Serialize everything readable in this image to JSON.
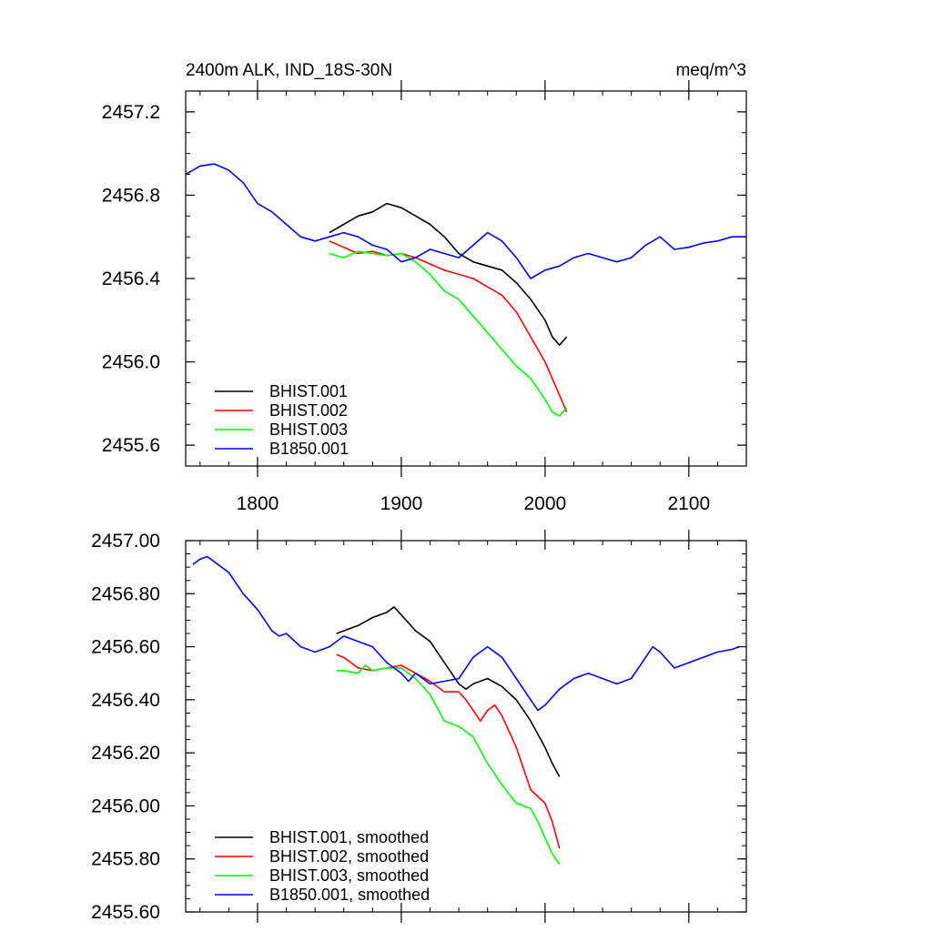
{
  "chart_data": [
    {
      "type": "line",
      "title": "2400m ALK, IND_18S-30N",
      "units": "meq/m^3",
      "xlim": [
        1750,
        2140
      ],
      "ylim": [
        2455.5,
        2457.3
      ],
      "x_ticks": [
        1800,
        1900,
        2000,
        2100
      ],
      "x_tick_labels": [
        "1800",
        "1900",
        "2000",
        "2100"
      ],
      "y_ticks": [
        2455.6,
        2456.0,
        2456.4,
        2456.8,
        2457.2
      ],
      "y_tick_labels": [
        "2455.6",
        "2456.0",
        "2456.4",
        "2456.8",
        "2457.2"
      ],
      "legend_position": "bottom-left",
      "series": [
        {
          "name": "BHIST.001",
          "color": "#000000",
          "x": [
            1850,
            1860,
            1870,
            1880,
            1890,
            1900,
            1910,
            1920,
            1930,
            1940,
            1950,
            1960,
            1970,
            1980,
            1990,
            2000,
            2005,
            2010,
            2015
          ],
          "y": [
            2456.62,
            2456.66,
            2456.7,
            2456.72,
            2456.76,
            2456.74,
            2456.7,
            2456.66,
            2456.6,
            2456.52,
            2456.48,
            2456.46,
            2456.44,
            2456.38,
            2456.3,
            2456.2,
            2456.12,
            2456.08,
            2456.12
          ]
        },
        {
          "name": "BHIST.002",
          "color": "#ff0000",
          "x": [
            1850,
            1860,
            1870,
            1880,
            1890,
            1900,
            1910,
            1920,
            1930,
            1940,
            1950,
            1960,
            1970,
            1980,
            1990,
            2000,
            2005,
            2010,
            2015
          ],
          "y": [
            2456.58,
            2456.55,
            2456.52,
            2456.53,
            2456.51,
            2456.52,
            2456.5,
            2456.47,
            2456.44,
            2456.42,
            2456.4,
            2456.36,
            2456.32,
            2456.24,
            2456.12,
            2456.0,
            2455.92,
            2455.84,
            2455.76
          ]
        },
        {
          "name": "BHIST.003",
          "color": "#00ff00",
          "x": [
            1850,
            1860,
            1870,
            1880,
            1890,
            1900,
            1910,
            1920,
            1930,
            1940,
            1950,
            1960,
            1970,
            1980,
            1990,
            2000,
            2005,
            2010,
            2015
          ],
          "y": [
            2456.52,
            2456.5,
            2456.53,
            2456.52,
            2456.51,
            2456.52,
            2456.48,
            2456.42,
            2456.34,
            2456.3,
            2456.22,
            2456.14,
            2456.06,
            2455.98,
            2455.92,
            2455.82,
            2455.76,
            2455.74,
            2455.78
          ]
        },
        {
          "name": "B1850.001",
          "color": "#0000ff",
          "x": [
            1750,
            1760,
            1770,
            1780,
            1790,
            1800,
            1810,
            1820,
            1830,
            1840,
            1850,
            1860,
            1870,
            1880,
            1890,
            1900,
            1910,
            1920,
            1930,
            1940,
            1950,
            1960,
            1970,
            1980,
            1990,
            2000,
            2010,
            2020,
            2030,
            2040,
            2050,
            2060,
            2070,
            2080,
            2090,
            2100,
            2110,
            2120,
            2130,
            2140
          ],
          "y": [
            2456.9,
            2456.94,
            2456.95,
            2456.92,
            2456.86,
            2456.76,
            2456.72,
            2456.66,
            2456.6,
            2456.58,
            2456.6,
            2456.62,
            2456.6,
            2456.56,
            2456.54,
            2456.48,
            2456.5,
            2456.54,
            2456.52,
            2456.5,
            2456.56,
            2456.62,
            2456.58,
            2456.5,
            2456.4,
            2456.44,
            2456.46,
            2456.5,
            2456.52,
            2456.5,
            2456.48,
            2456.5,
            2456.56,
            2456.6,
            2456.54,
            2456.55,
            2456.57,
            2456.58,
            2456.6,
            2456.6
          ]
        }
      ]
    },
    {
      "type": "line",
      "xlim": [
        1750,
        2140
      ],
      "ylim": [
        2455.6,
        2457.0
      ],
      "x_ticks": [
        1800,
        1900,
        2000,
        2100
      ],
      "y_ticks": [
        2455.6,
        2455.8,
        2456.0,
        2456.2,
        2456.4,
        2456.6,
        2456.8,
        2457.0
      ],
      "y_tick_labels": [
        "2455.60",
        "2455.80",
        "2456.00",
        "2456.20",
        "2456.40",
        "2456.60",
        "2456.80",
        "2457.00"
      ],
      "legend_position": "bottom-left",
      "series": [
        {
          "name": "BHIST.001, smoothed",
          "color": "#000000",
          "x": [
            1855,
            1860,
            1870,
            1880,
            1890,
            1895,
            1900,
            1910,
            1920,
            1930,
            1940,
            1945,
            1950,
            1960,
            1970,
            1980,
            1990,
            2000,
            2005,
            2010
          ],
          "y": [
            2456.65,
            2456.66,
            2456.68,
            2456.71,
            2456.73,
            2456.75,
            2456.72,
            2456.66,
            2456.62,
            2456.54,
            2456.46,
            2456.44,
            2456.46,
            2456.48,
            2456.45,
            2456.4,
            2456.32,
            2456.22,
            2456.16,
            2456.11
          ]
        },
        {
          "name": "BHIST.002, smoothed",
          "color": "#ff0000",
          "x": [
            1855,
            1860,
            1870,
            1880,
            1890,
            1900,
            1910,
            1920,
            1930,
            1940,
            1945,
            1950,
            1955,
            1960,
            1965,
            1970,
            1980,
            1990,
            2000,
            2005,
            2010
          ],
          "y": [
            2456.57,
            2456.56,
            2456.52,
            2456.51,
            2456.52,
            2456.53,
            2456.5,
            2456.47,
            2456.43,
            2456.43,
            2456.4,
            2456.36,
            2456.32,
            2456.36,
            2456.38,
            2456.34,
            2456.22,
            2456.06,
            2456.01,
            2455.94,
            2455.84
          ]
        },
        {
          "name": "BHIST.003, smoothed",
          "color": "#00ff00",
          "x": [
            1855,
            1860,
            1870,
            1875,
            1880,
            1890,
            1900,
            1910,
            1920,
            1930,
            1940,
            1950,
            1960,
            1970,
            1980,
            1990,
            1995,
            2000,
            2005,
            2010
          ],
          "y": [
            2456.51,
            2456.51,
            2456.5,
            2456.53,
            2456.51,
            2456.52,
            2456.52,
            2456.48,
            2456.42,
            2456.32,
            2456.3,
            2456.26,
            2456.16,
            2456.08,
            2456.01,
            2455.99,
            2455.94,
            2455.88,
            2455.82,
            2455.78
          ]
        },
        {
          "name": "B1850.001, smoothed",
          "color": "#0000ff",
          "x": [
            1755,
            1760,
            1765,
            1770,
            1780,
            1790,
            1800,
            1810,
            1815,
            1820,
            1830,
            1840,
            1850,
            1860,
            1870,
            1880,
            1890,
            1900,
            1905,
            1910,
            1920,
            1930,
            1940,
            1950,
            1955,
            1960,
            1970,
            1980,
            1990,
            1995,
            2000,
            2010,
            2020,
            2030,
            2040,
            2050,
            2060,
            2070,
            2075,
            2080,
            2090,
            2100,
            2110,
            2120,
            2130,
            2135
          ],
          "y": [
            2456.91,
            2456.93,
            2456.94,
            2456.92,
            2456.88,
            2456.8,
            2456.74,
            2456.66,
            2456.64,
            2456.65,
            2456.6,
            2456.58,
            2456.6,
            2456.64,
            2456.62,
            2456.6,
            2456.54,
            2456.5,
            2456.47,
            2456.5,
            2456.46,
            2456.47,
            2456.48,
            2456.56,
            2456.58,
            2456.6,
            2456.56,
            2456.48,
            2456.4,
            2456.36,
            2456.38,
            2456.44,
            2456.48,
            2456.5,
            2456.48,
            2456.46,
            2456.48,
            2456.56,
            2456.6,
            2456.58,
            2456.52,
            2456.54,
            2456.56,
            2456.58,
            2456.59,
            2456.6
          ]
        }
      ]
    }
  ]
}
